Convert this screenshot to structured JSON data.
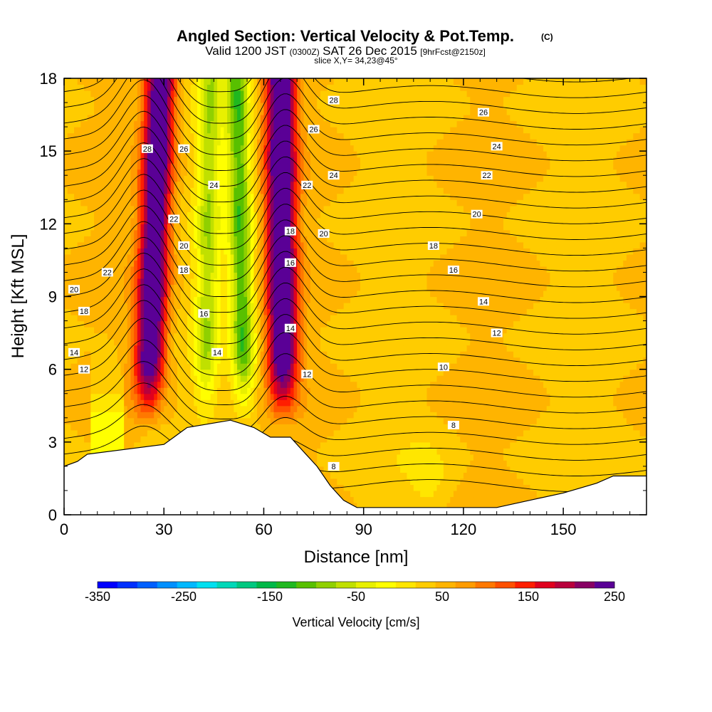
{
  "chart_data": {
    "type": "heatmap",
    "title": "Angled Section: Vertical Velocity & Pot.Temp.",
    "title_suffix": "(C)",
    "subtitle": {
      "valid_prefix": "Valid 1200 JST",
      "utc": "(0300Z)",
      "date": "SAT 26 Dec 2015",
      "forecast": "[9hrFcst@2150z]",
      "slice": "slice X,Y= 34,23@45°"
    },
    "xlabel": "Distance [nm]",
    "ylabel": "Height [Kft MSL]",
    "xlim": [
      0,
      175
    ],
    "ylim": [
      0,
      18
    ],
    "x_ticks": [
      "0",
      "30",
      "60",
      "90",
      "120",
      "150"
    ],
    "x_tick_values": [
      0,
      30,
      60,
      90,
      120,
      150
    ],
    "y_ticks": [
      "0",
      "3",
      "6",
      "9",
      "12",
      "15",
      "18"
    ],
    "y_tick_values": [
      0,
      3,
      6,
      9,
      12,
      15,
      18
    ],
    "colorbar": {
      "title": "Vertical Velocity [cm/s]",
      "labels": [
        "-350",
        "-250",
        "-150",
        "-50",
        "50",
        "150",
        "250"
      ],
      "label_values": [
        -350,
        -250,
        -150,
        -50,
        50,
        150,
        250
      ],
      "range": [
        -350,
        250
      ],
      "colors": [
        "#0000ff",
        "#0030ff",
        "#0060ff",
        "#0090ff",
        "#00b8ff",
        "#00e0f0",
        "#00d8b8",
        "#00c880",
        "#00b848",
        "#20b820",
        "#58c000",
        "#90d000",
        "#c0e000",
        "#e8f000",
        "#ffff00",
        "#ffe600",
        "#ffcc00",
        "#ffb400",
        "#ff9c00",
        "#ff7800",
        "#ff5000",
        "#ff1e00",
        "#e0001e",
        "#b8003c",
        "#880064",
        "#5a0096"
      ]
    },
    "series": [
      {
        "type": "updraft",
        "x_bottom": 24,
        "x_top": 29,
        "w": 250
      },
      {
        "type": "updraft",
        "x_bottom": 66,
        "x_top": 65,
        "w": 250
      },
      {
        "type": "downdraft",
        "x_bottom": 55,
        "x_top": 52,
        "w": -150
      },
      {
        "type": "downdraft",
        "x_bottom": 42,
        "x_top": 44,
        "w": -100
      }
    ],
    "terrain": [
      [
        0,
        2.0
      ],
      [
        4,
        2.2
      ],
      [
        7,
        2.5
      ],
      [
        30,
        2.9
      ],
      [
        33,
        3.2
      ],
      [
        37,
        3.6
      ],
      [
        50,
        3.9
      ],
      [
        57,
        3.6
      ],
      [
        62,
        3.2
      ],
      [
        68,
        3.2
      ],
      [
        72,
        2.6
      ],
      [
        76,
        2.0
      ],
      [
        80,
        1.2
      ],
      [
        84,
        0.6
      ],
      [
        88,
        0.3
      ],
      [
        130,
        0.3
      ],
      [
        140,
        0.6
      ],
      [
        150,
        0.9
      ],
      [
        160,
        1.3
      ],
      [
        165,
        1.6
      ],
      [
        175,
        1.6
      ]
    ],
    "contour_labels": [
      {
        "text": "28",
        "x": 25,
        "y": 15.1
      },
      {
        "text": "26",
        "x": 36,
        "y": 15.1
      },
      {
        "text": "24",
        "x": 45,
        "y": 13.6
      },
      {
        "text": "22",
        "x": 33,
        "y": 12.2
      },
      {
        "text": "20",
        "x": 36,
        "y": 11.1
      },
      {
        "text": "18",
        "x": 36,
        "y": 10.1
      },
      {
        "text": "16",
        "x": 42,
        "y": 8.3
      },
      {
        "text": "14",
        "x": 46,
        "y": 6.7
      },
      {
        "text": "22",
        "x": 13,
        "y": 10.0
      },
      {
        "text": "20",
        "x": 3,
        "y": 9.3
      },
      {
        "text": "18",
        "x": 6,
        "y": 8.4
      },
      {
        "text": "14",
        "x": 3,
        "y": 6.7
      },
      {
        "text": "12",
        "x": 6,
        "y": 6.0
      },
      {
        "text": "28",
        "x": 81,
        "y": 17.1
      },
      {
        "text": "26",
        "x": 75,
        "y": 15.9
      },
      {
        "text": "24",
        "x": 81,
        "y": 14.0
      },
      {
        "text": "22",
        "x": 73,
        "y": 13.6
      },
      {
        "text": "20",
        "x": 78,
        "y": 11.6
      },
      {
        "text": "18",
        "x": 68,
        "y": 11.7
      },
      {
        "text": "16",
        "x": 68,
        "y": 10.4
      },
      {
        "text": "14",
        "x": 68,
        "y": 7.7
      },
      {
        "text": "12",
        "x": 73,
        "y": 5.8
      },
      {
        "text": "26",
        "x": 126,
        "y": 16.6
      },
      {
        "text": "24",
        "x": 130,
        "y": 15.2
      },
      {
        "text": "22",
        "x": 127,
        "y": 14.0
      },
      {
        "text": "20",
        "x": 124,
        "y": 12.4
      },
      {
        "text": "18",
        "x": 111,
        "y": 11.1
      },
      {
        "text": "16",
        "x": 117,
        "y": 10.1
      },
      {
        "text": "14",
        "x": 126,
        "y": 8.8
      },
      {
        "text": "12",
        "x": 130,
        "y": 7.5
      },
      {
        "text": "10",
        "x": 114,
        "y": 6.1
      },
      {
        "text": "8",
        "x": 117,
        "y": 3.7
      },
      {
        "text": "8",
        "x": 81,
        "y": 2.0
      }
    ]
  }
}
